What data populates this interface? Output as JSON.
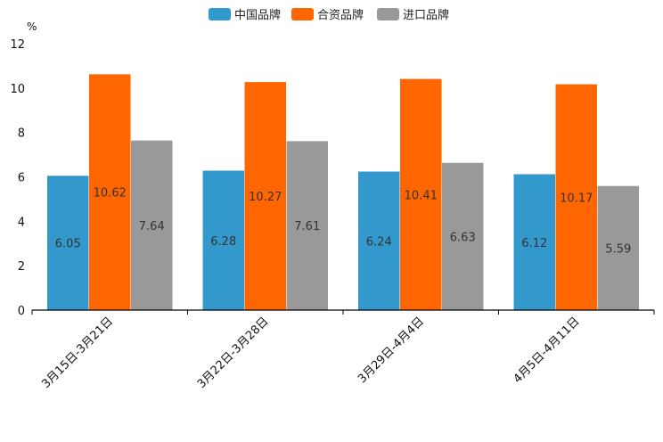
{
  "chart_data": {
    "type": "bar",
    "title": "",
    "xlabel": "",
    "ylabel": "%",
    "ylim": [
      0,
      12
    ],
    "yticks": [
      0,
      2,
      4,
      6,
      8,
      10,
      12
    ],
    "grid": false,
    "legend_position": "top-center",
    "categories": [
      "3月15日-3月21日",
      "3月22日-3月28日",
      "3月29日-4月4日",
      "4月5日-4月11日"
    ],
    "series": [
      {
        "name": "中国品牌",
        "color": "#3399cc",
        "values": [
          6.05,
          6.28,
          6.24,
          6.12
        ]
      },
      {
        "name": "合资品牌",
        "color": "#ff6600",
        "values": [
          10.62,
          10.27,
          10.41,
          10.17
        ]
      },
      {
        "name": "进口品牌",
        "color": "#999999",
        "values": [
          7.64,
          7.61,
          6.63,
          5.59
        ]
      }
    ]
  }
}
